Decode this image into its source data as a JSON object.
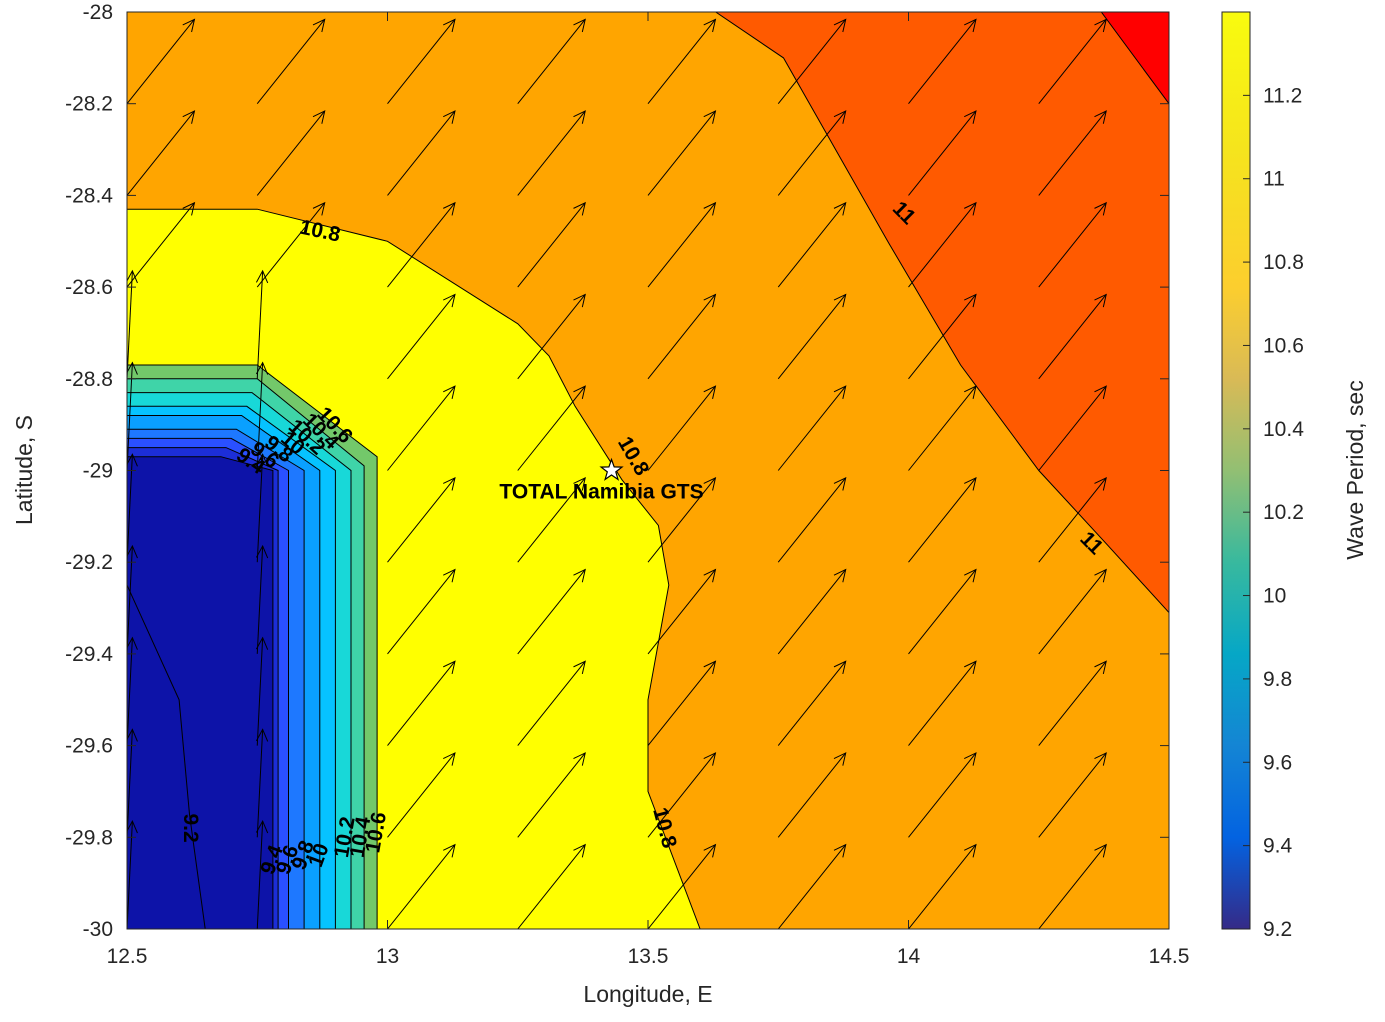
{
  "chart_data": {
    "type": "filled-contour",
    "title": "",
    "xlabel": "Longitude, E",
    "ylabel": "Latitude, S",
    "xlim": [
      12.5,
      14.5
    ],
    "ylim": [
      -30,
      -28
    ],
    "xticks": [
      "12.5",
      "13",
      "13.5",
      "14",
      "14.5"
    ],
    "yticks": [
      "-28",
      "-28.2",
      "-28.4",
      "-28.6",
      "-28.8",
      "-29",
      "-29.2",
      "-29.4",
      "-29.6",
      "-29.8",
      "-30"
    ],
    "colorbar": {
      "label": "Wave Period, sec",
      "range": [
        9.2,
        11.4
      ],
      "ticks": [
        "9.2",
        "9.4",
        "9.6",
        "9.8",
        "10",
        "10.2",
        "10.4",
        "10.6",
        "10.8",
        "11",
        "11.2"
      ],
      "colormap": "parula"
    },
    "contour_levels": [
      9.2,
      9.4,
      9.6,
      9.8,
      10.0,
      10.2,
      10.4,
      10.6,
      10.8,
      11.0,
      11.2
    ],
    "contour_labels": [
      "10.8",
      "11",
      "10.8",
      "11",
      "10.8",
      "9.2",
      "9.4",
      "9.6",
      "9.8",
      "10",
      "10.2",
      "10.4",
      "10.6"
    ],
    "site": {
      "name": "TOTAL Namibia GTS",
      "lon": 13.43,
      "lat": -29.0
    },
    "vector_field": {
      "description_of_direction": "wave direction arrows",
      "lon": [
        12.5,
        12.75,
        13.0,
        13.25,
        13.5,
        13.75,
        14.0,
        14.25
      ],
      "lat": [
        -30.0,
        -29.8,
        -29.6,
        -29.4,
        -29.2,
        -29.0,
        -28.8,
        -28.6,
        -28.4,
        -28.2
      ],
      "open_water_dir": [
        0.48,
        0.6
      ]
    }
  }
}
